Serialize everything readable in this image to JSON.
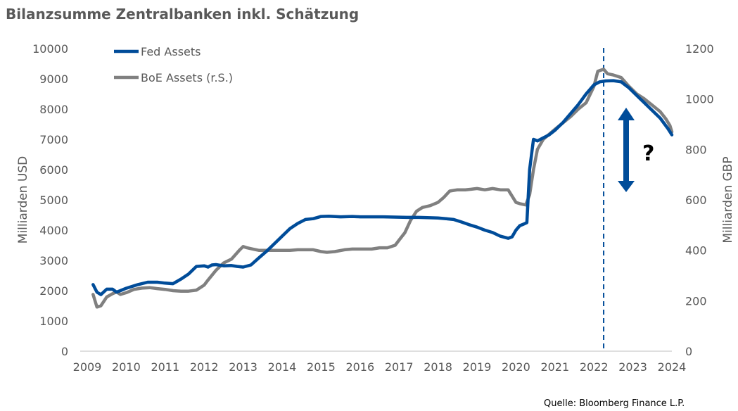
{
  "chart_data": {
    "type": "line",
    "title": "Bilanzsumme Zentralbanken inkl. Schätzung",
    "source": "Quelle: Bloomberg Finance L.P.",
    "annotation": "?",
    "ylabel_left": "Milliarden USD",
    "ylabel_right": "Milliarden GBP",
    "xlim": [
      2009,
      2024
    ],
    "ylim_left": [
      0,
      10000
    ],
    "ylim_right": [
      0,
      1200
    ],
    "x_ticks": [
      "2009",
      "2010",
      "2011",
      "2012",
      "2013",
      "2014",
      "2015",
      "2016",
      "2017",
      "2018",
      "2019",
      "2020",
      "2021",
      "2022",
      "2023",
      "2024"
    ],
    "y_left_ticks": [
      "0",
      "1000",
      "2000",
      "3000",
      "4000",
      "5000",
      "6000",
      "7000",
      "8000",
      "9000",
      "10000"
    ],
    "y_right_ticks": [
      "0",
      "200",
      "400",
      "600",
      "800",
      "1000",
      "1200"
    ],
    "vline_x": 2022.25,
    "grid": false,
    "legend_position": "top-left",
    "colors": {
      "fed": "#004C99",
      "boe": "#808080",
      "annotation": "#004C99",
      "text": "#595959"
    },
    "series": [
      {
        "name": "Fed Assets",
        "axis": "left",
        "points": [
          [
            2009.15,
            2200
          ],
          [
            2009.25,
            1950
          ],
          [
            2009.35,
            1870
          ],
          [
            2009.5,
            2050
          ],
          [
            2009.65,
            2050
          ],
          [
            2009.75,
            1950
          ],
          [
            2009.85,
            2000
          ],
          [
            2010.0,
            2080
          ],
          [
            2010.3,
            2200
          ],
          [
            2010.55,
            2280
          ],
          [
            2010.8,
            2280
          ],
          [
            2011.0,
            2250
          ],
          [
            2011.2,
            2230
          ],
          [
            2011.4,
            2380
          ],
          [
            2011.6,
            2550
          ],
          [
            2011.8,
            2800
          ],
          [
            2012.0,
            2820
          ],
          [
            2012.1,
            2780
          ],
          [
            2012.2,
            2850
          ],
          [
            2012.3,
            2860
          ],
          [
            2012.5,
            2820
          ],
          [
            2012.7,
            2830
          ],
          [
            2012.85,
            2800
          ],
          [
            2013.0,
            2780
          ],
          [
            2013.2,
            2850
          ],
          [
            2013.4,
            3080
          ],
          [
            2013.6,
            3300
          ],
          [
            2013.8,
            3550
          ],
          [
            2014.0,
            3800
          ],
          [
            2014.2,
            4050
          ],
          [
            2014.4,
            4220
          ],
          [
            2014.6,
            4350
          ],
          [
            2014.8,
            4380
          ],
          [
            2015.0,
            4450
          ],
          [
            2015.2,
            4460
          ],
          [
            2015.5,
            4440
          ],
          [
            2015.8,
            4450
          ],
          [
            2016.0,
            4440
          ],
          [
            2016.3,
            4440
          ],
          [
            2016.6,
            4440
          ],
          [
            2016.9,
            4430
          ],
          [
            2017.2,
            4420
          ],
          [
            2017.5,
            4420
          ],
          [
            2017.8,
            4410
          ],
          [
            2018.0,
            4400
          ],
          [
            2018.2,
            4380
          ],
          [
            2018.4,
            4350
          ],
          [
            2018.6,
            4270
          ],
          [
            2018.8,
            4180
          ],
          [
            2019.0,
            4100
          ],
          [
            2019.2,
            4000
          ],
          [
            2019.4,
            3920
          ],
          [
            2019.6,
            3800
          ],
          [
            2019.8,
            3730
          ],
          [
            2019.9,
            3780
          ],
          [
            2020.0,
            4000
          ],
          [
            2020.1,
            4150
          ],
          [
            2020.2,
            4200
          ],
          [
            2020.28,
            4250
          ],
          [
            2020.35,
            6000
          ],
          [
            2020.45,
            7000
          ],
          [
            2020.55,
            6950
          ],
          [
            2020.7,
            7050
          ],
          [
            2020.85,
            7150
          ],
          [
            2021.0,
            7300
          ],
          [
            2021.2,
            7550
          ],
          [
            2021.4,
            7850
          ],
          [
            2021.6,
            8150
          ],
          [
            2021.8,
            8500
          ],
          [
            2022.0,
            8800
          ],
          [
            2022.15,
            8900
          ],
          [
            2022.3,
            8930
          ],
          [
            2022.5,
            8940
          ],
          [
            2022.7,
            8900
          ],
          [
            2022.9,
            8700
          ],
          [
            2023.1,
            8450
          ],
          [
            2023.3,
            8200
          ],
          [
            2023.5,
            7950
          ],
          [
            2023.7,
            7700
          ],
          [
            2023.9,
            7350
          ],
          [
            2024.0,
            7150
          ]
        ]
      },
      {
        "name": "BoE Assets (r.S.)",
        "axis": "right",
        "points": [
          [
            2009.15,
            225
          ],
          [
            2009.25,
            175
          ],
          [
            2009.35,
            180
          ],
          [
            2009.5,
            215
          ],
          [
            2009.65,
            228
          ],
          [
            2009.75,
            235
          ],
          [
            2009.85,
            225
          ],
          [
            2010.0,
            232
          ],
          [
            2010.2,
            245
          ],
          [
            2010.4,
            250
          ],
          [
            2010.6,
            252
          ],
          [
            2010.8,
            248
          ],
          [
            2011.0,
            245
          ],
          [
            2011.2,
            240
          ],
          [
            2011.4,
            238
          ],
          [
            2011.6,
            238
          ],
          [
            2011.8,
            242
          ],
          [
            2012.0,
            262
          ],
          [
            2012.1,
            282
          ],
          [
            2012.3,
            320
          ],
          [
            2012.5,
            350
          ],
          [
            2012.7,
            365
          ],
          [
            2012.9,
            400
          ],
          [
            2013.0,
            415
          ],
          [
            2013.1,
            410
          ],
          [
            2013.25,
            405
          ],
          [
            2013.4,
            400
          ],
          [
            2013.6,
            400
          ],
          [
            2013.8,
            400
          ],
          [
            2014.0,
            400
          ],
          [
            2014.2,
            400
          ],
          [
            2014.4,
            402
          ],
          [
            2014.6,
            402
          ],
          [
            2014.8,
            402
          ],
          [
            2015.0,
            395
          ],
          [
            2015.15,
            392
          ],
          [
            2015.35,
            395
          ],
          [
            2015.6,
            402
          ],
          [
            2015.8,
            405
          ],
          [
            2016.0,
            405
          ],
          [
            2016.3,
            405
          ],
          [
            2016.5,
            410
          ],
          [
            2016.7,
            410
          ],
          [
            2016.9,
            420
          ],
          [
            2017.0,
            440
          ],
          [
            2017.15,
            470
          ],
          [
            2017.3,
            520
          ],
          [
            2017.45,
            555
          ],
          [
            2017.6,
            570
          ],
          [
            2017.8,
            577
          ],
          [
            2018.0,
            590
          ],
          [
            2018.15,
            610
          ],
          [
            2018.3,
            635
          ],
          [
            2018.5,
            640
          ],
          [
            2018.7,
            640
          ],
          [
            2018.85,
            642
          ],
          [
            2019.0,
            645
          ],
          [
            2019.2,
            640
          ],
          [
            2019.4,
            645
          ],
          [
            2019.6,
            640
          ],
          [
            2019.8,
            640
          ],
          [
            2020.0,
            590
          ],
          [
            2020.1,
            585
          ],
          [
            2020.25,
            580
          ],
          [
            2020.35,
            620
          ],
          [
            2020.45,
            720
          ],
          [
            2020.55,
            800
          ],
          [
            2020.7,
            840
          ],
          [
            2020.85,
            860
          ],
          [
            2021.0,
            880
          ],
          [
            2021.2,
            905
          ],
          [
            2021.4,
            930
          ],
          [
            2021.6,
            960
          ],
          [
            2021.8,
            985
          ],
          [
            2022.0,
            1050
          ],
          [
            2022.1,
            1110
          ],
          [
            2022.25,
            1118
          ],
          [
            2022.35,
            1100
          ],
          [
            2022.5,
            1095
          ],
          [
            2022.7,
            1085
          ],
          [
            2022.9,
            1050
          ],
          [
            2023.1,
            1020
          ],
          [
            2023.3,
            1000
          ],
          [
            2023.5,
            975
          ],
          [
            2023.7,
            950
          ],
          [
            2023.85,
            920
          ],
          [
            2023.95,
            895
          ],
          [
            2024.0,
            870
          ]
        ]
      }
    ]
  }
}
